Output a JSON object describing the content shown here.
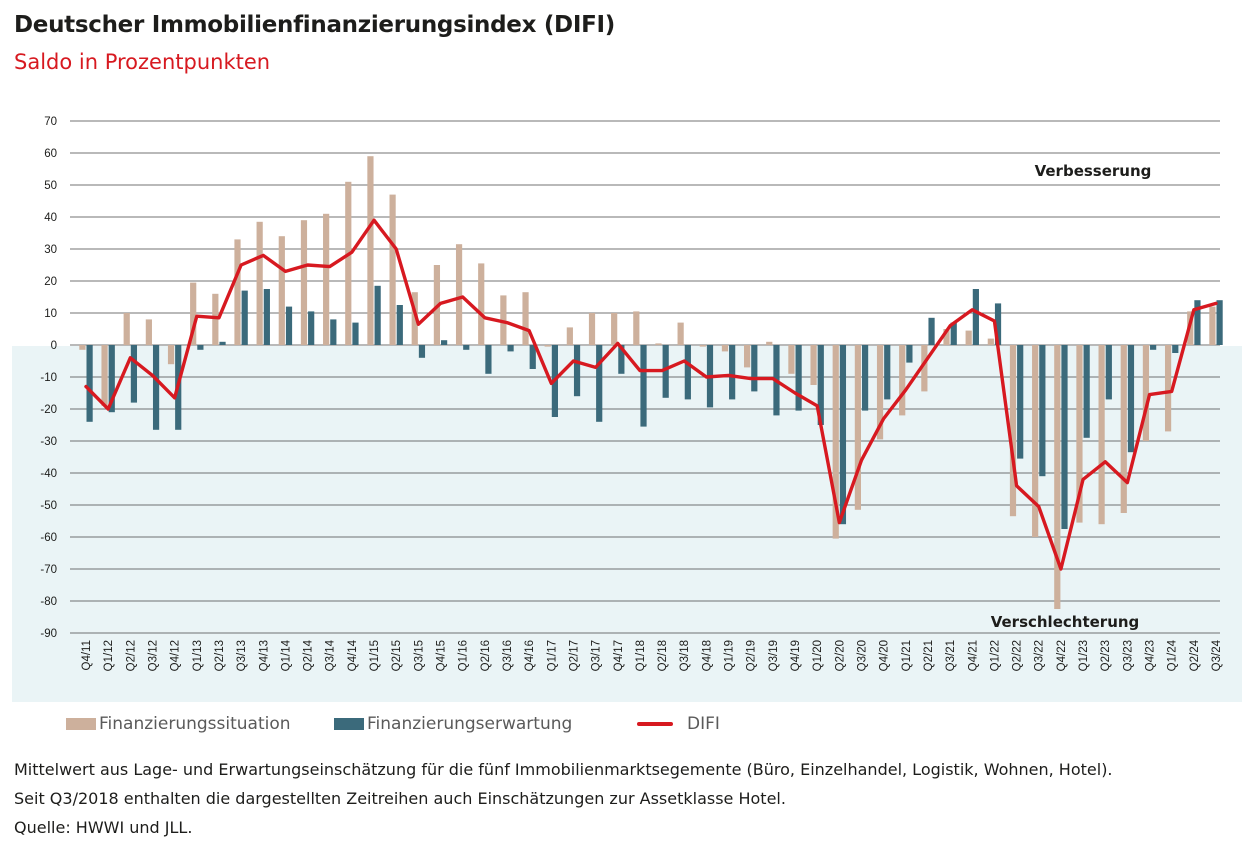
{
  "title": "Deutscher Immobilienfinanzierungsindex (DIFI)",
  "subtitle": "Saldo in Prozentpunkten",
  "annotations": {
    "top": "Verbesserung",
    "bottom": "Verschlechterung"
  },
  "legend": {
    "situation": "Finanzierungssituation",
    "erwartung": "Finanzierungserwartung",
    "difi": "DIFI"
  },
  "notes": {
    "line1": "Mittelwert aus Lage- und Erwartungseinschätzung für die fünf Immobilienmarktsegemente (Büro, Einzelhandel, Logistik, Wohnen, Hotel).",
    "line2": "Seit Q3/2018 enthalten die dargestellten Zeitreihen auch Einschätzungen zur Assetklasse Hotel.",
    "line3": "Quelle: HWWI und JLL."
  },
  "colors": {
    "situation": "#cdb09c",
    "erwartung": "#3b6a7b",
    "difi": "#d71920",
    "negative_area": "#eaf4f6",
    "grid": "#444444"
  },
  "chart_data": {
    "type": "bar",
    "ylim": [
      -90,
      70
    ],
    "yticks": [
      70,
      60,
      50,
      40,
      30,
      20,
      10,
      0,
      -10,
      -20,
      -30,
      -40,
      -50,
      -60,
      -70,
      -80,
      -90
    ],
    "grid": true,
    "legend_position": "bottom",
    "categories": [
      "Q4/11",
      "Q1/12",
      "Q2/12",
      "Q3/12",
      "Q4/12",
      "Q1/13",
      "Q2/13",
      "Q3/13",
      "Q4/13",
      "Q1/14",
      "Q2/14",
      "Q3/14",
      "Q4/14",
      "Q1/15",
      "Q2/15",
      "Q3/15",
      "Q4/15",
      "Q1/16",
      "Q2/16",
      "Q3/16",
      "Q4/16",
      "Q1/17",
      "Q2/17",
      "Q3/17",
      "Q4/17",
      "Q1/18",
      "Q2/18",
      "Q3/18",
      "Q4/18",
      "Q1/19",
      "Q2/19",
      "Q3/19",
      "Q4/19",
      "Q1/20",
      "Q2/20",
      "Q3/20",
      "Q4/20",
      "Q1/21",
      "Q2/21",
      "Q3/21",
      "Q4/21",
      "Q1/22",
      "Q2/22",
      "Q3/22",
      "Q4/22",
      "Q1/23",
      "Q2/23",
      "Q3/23",
      "Q4/23",
      "Q1/24",
      "Q2/24",
      "Q3/24"
    ],
    "series": [
      {
        "name": "Finanzierungssituation",
        "type": "bar",
        "values": [
          -1.5,
          -19,
          10,
          8,
          -6,
          19.5,
          16,
          33,
          38.5,
          34,
          39,
          41,
          51,
          59,
          47,
          16.5,
          25,
          31.5,
          25.5,
          15.5,
          16.5,
          -0.5,
          5.5,
          10,
          10,
          10.5,
          0.5,
          7,
          -0.5,
          -2,
          -7,
          1,
          -9,
          -12.5,
          -60.5,
          -51.5,
          -29.5,
          -22,
          -14.5,
          5,
          4.5,
          2,
          -53.5,
          -60,
          -82.5,
          -55.5,
          -56,
          -52.5,
          -30,
          -27,
          10.5,
          12
        ]
      },
      {
        "name": "Finanzierungserwartung",
        "type": "bar",
        "values": [
          -24,
          -21,
          -18,
          -26.5,
          -26.5,
          -1.5,
          1,
          17,
          17.5,
          12,
          10.5,
          8,
          7,
          18.5,
          12.5,
          -4,
          1.5,
          -1.5,
          -9,
          -2,
          -7.5,
          -22.5,
          -16,
          -24,
          -9,
          -25.5,
          -16.5,
          -17,
          -19.5,
          -17,
          -14.5,
          -22,
          -20.5,
          -25,
          -56,
          -20.5,
          -17,
          -5.5,
          8.5,
          7,
          17.5,
          13,
          -35.5,
          -41,
          -57.5,
          -29,
          -17,
          -33.5,
          -1.5,
          -2.5,
          14,
          14
        ]
      },
      {
        "name": "DIFI",
        "type": "line",
        "values": [
          -13,
          -20,
          -4,
          -9.5,
          -16.5,
          9,
          8.5,
          25,
          28,
          23,
          25,
          24.5,
          29,
          39,
          30,
          6.5,
          13,
          15,
          8.5,
          7,
          4.5,
          -12,
          -5,
          -7,
          0.5,
          -8,
          -8,
          -5,
          -10,
          -9.5,
          -10.5,
          -10.5,
          -15,
          -19,
          -55.5,
          -36,
          -23,
          -14,
          -4,
          6,
          11,
          7.5,
          -44,
          -50.5,
          -70,
          -42,
          -36.5,
          -43,
          -15.5,
          -14.5,
          11,
          13
        ]
      }
    ]
  }
}
